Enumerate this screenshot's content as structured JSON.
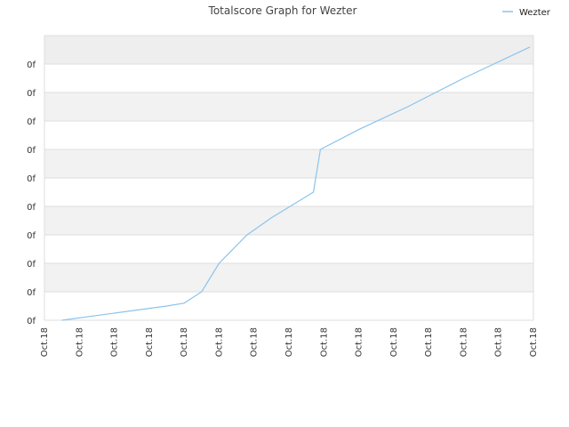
{
  "chart_data": {
    "type": "line",
    "title": "Totalscore Graph for Wezter",
    "xlabel": "",
    "ylabel": "",
    "legend": {
      "position": "top-right",
      "entries": [
        "Wezter"
      ]
    },
    "grid": true,
    "x_tick_labels": [
      "Oct.18",
      "Oct.18",
      "Oct.18",
      "Oct.18",
      "Oct.18",
      "Oct.18",
      "Oct.18",
      "Oct.18",
      "Oct.18",
      "Oct.18",
      "Oct.18",
      "Oct.18",
      "Oct.18",
      "Oct.18",
      "Oct.18"
    ],
    "y_tick_labels": [
      "0f",
      "0f",
      "0f",
      "0f",
      "0f",
      "0f",
      "0f",
      "0f",
      "0f",
      "0f"
    ],
    "xlim": [
      0,
      14
    ],
    "ylim": [
      0,
      10
    ],
    "series": [
      {
        "name": "Wezter",
        "color": "#8cc4ec",
        "x": [
          0.5,
          2.0,
          3.5,
          4.0,
          4.5,
          5.0,
          5.8,
          6.5,
          7.7,
          7.9,
          9.0,
          10.4,
          12.0,
          13.9
        ],
        "y": [
          0.0,
          0.25,
          0.5,
          0.6,
          1.0,
          2.0,
          3.0,
          3.6,
          4.5,
          6.0,
          6.7,
          7.5,
          8.5,
          9.6
        ]
      }
    ],
    "colors": {
      "band_dark": "#eeeeee",
      "band_mid": "#f2f2f2",
      "band_light": "#ffffff",
      "gridline": "#dddddd",
      "axis": "#dddddd"
    }
  }
}
